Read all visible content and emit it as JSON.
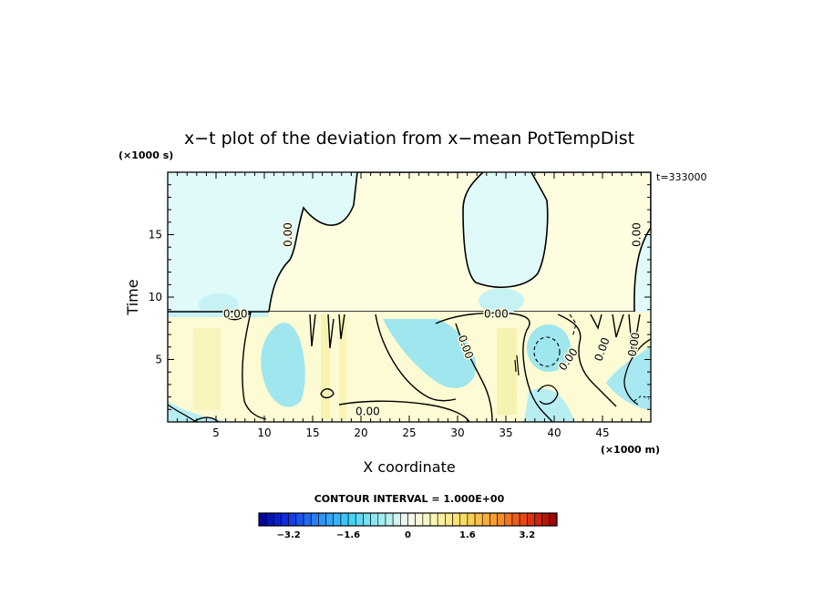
{
  "chart_data": {
    "type": "heatmap",
    "title": "x−t plot of the deviation from x−mean PotTempDist",
    "xlabel": "X coordinate",
    "ylabel": "Time",
    "x_unit": "(×1000 m)",
    "y_unit": "(×1000 s)",
    "time_stamp": "t=333000",
    "contour_interval_text": "CONTOUR INTERVAL = 1.000E+00",
    "xlim": [
      0,
      50
    ],
    "ylim": [
      0,
      20
    ],
    "x_ticks": [
      5,
      10,
      15,
      20,
      25,
      30,
      35,
      40,
      45
    ],
    "x_tick_labels": [
      "5",
      "10",
      "15",
      "20",
      "25",
      "30",
      "35",
      "40",
      "45"
    ],
    "y_ticks": [
      5,
      10,
      15
    ],
    "y_tick_labels": [
      "5",
      "10",
      "15"
    ],
    "contour_labels": [
      {
        "text": "0.00",
        "x": 12.5,
        "y": 15.0,
        "angle": -90
      },
      {
        "text": "0.00",
        "x": 7.0,
        "y": 8.6,
        "angle": 0
      },
      {
        "text": "0.00",
        "x": 34.0,
        "y": 8.6,
        "angle": 0
      },
      {
        "text": "0.00",
        "x": 30.8,
        "y": 6.0,
        "angle": 70
      },
      {
        "text": "0.00",
        "x": 41.5,
        "y": 5.0,
        "angle": -55
      },
      {
        "text": "0.00",
        "x": 45.0,
        "y": 5.8,
        "angle": -70
      },
      {
        "text": "0.00",
        "x": 48.3,
        "y": 6.2,
        "angle": -80
      },
      {
        "text": "0.00",
        "x": 48.6,
        "y": 15.0,
        "angle": -90
      },
      {
        "text": "0.00",
        "x": 20.7,
        "y": 0.8,
        "angle": 0
      }
    ],
    "colorbar": {
      "vmin": -4,
      "vmax": 4,
      "step": 0.2,
      "tick_values": [
        -3.2,
        -1.6,
        0,
        1.6,
        3.2
      ],
      "tick_labels": [
        "−3.2",
        "−1.6",
        "0",
        "1.6",
        "3.2"
      ]
    }
  }
}
